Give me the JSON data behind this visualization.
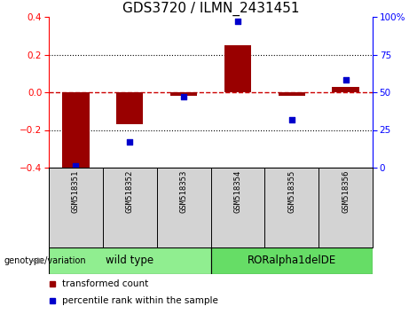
{
  "title": "GDS3720 / ILMN_2431451",
  "samples": [
    "GSM518351",
    "GSM518352",
    "GSM518353",
    "GSM518354",
    "GSM518355",
    "GSM518356"
  ],
  "transformed_count": [
    -0.42,
    -0.17,
    -0.02,
    0.25,
    -0.02,
    0.03
  ],
  "percentile_rank": [
    1.0,
    17.0,
    47.0,
    97.0,
    32.0,
    58.0
  ],
  "ylim_left": [
    -0.4,
    0.4
  ],
  "ylim_right": [
    0,
    100
  ],
  "bar_color": "#990000",
  "scatter_color": "#0000cc",
  "zero_line_color": "#cc0000",
  "dotted_line_color": "#000000",
  "sample_bg_color": "#d3d3d3",
  "groups": [
    {
      "label": "wild type",
      "start": 0,
      "end": 3,
      "color": "#90ee90"
    },
    {
      "label": "RORalpha1delDE",
      "start": 3,
      "end": 6,
      "color": "#66dd66"
    }
  ],
  "group_row_label": "genotype/variation",
  "legend_items": [
    {
      "label": "transformed count",
      "color": "#990000"
    },
    {
      "label": "percentile rank within the sample",
      "color": "#0000cc"
    }
  ],
  "title_fontsize": 11,
  "tick_fontsize": 7.5,
  "sample_fontsize": 6.5,
  "legend_fontsize": 7.5,
  "group_fontsize": 8.5
}
